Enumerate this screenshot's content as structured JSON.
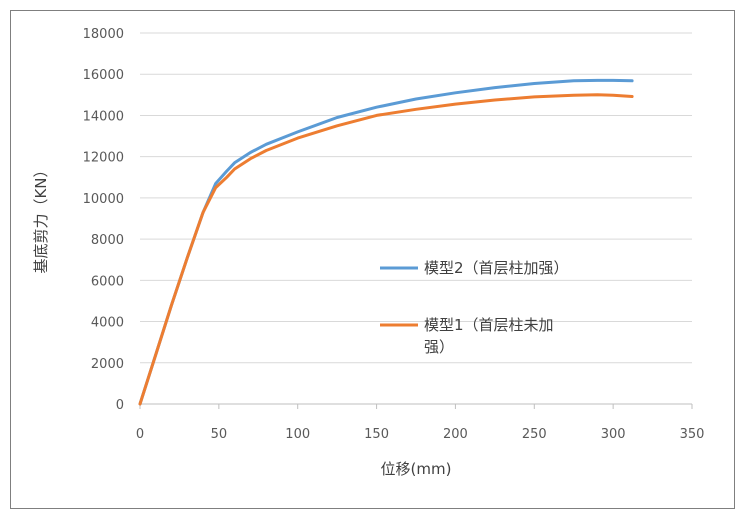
{
  "chart_data": {
    "type": "line",
    "title": "",
    "xlabel": "位移(mm)",
    "ylabel": "基底剪力（KN）",
    "xlim": [
      0,
      350
    ],
    "ylim": [
      0,
      18000
    ],
    "x_ticks": [
      0,
      50,
      100,
      150,
      200,
      250,
      300,
      350
    ],
    "y_ticks": [
      0,
      2000,
      4000,
      6000,
      8000,
      10000,
      12000,
      14000,
      16000,
      18000
    ],
    "grid": "horizontal",
    "legend_position": "center-right",
    "series": [
      {
        "name": "模型2（首层柱加强）",
        "color": "#5b9bd5",
        "x": [
          0,
          10,
          20,
          30,
          40,
          48,
          55,
          60,
          70,
          80,
          100,
          125,
          150,
          175,
          200,
          225,
          250,
          275,
          290,
          300,
          312
        ],
        "y": [
          0,
          2400,
          4800,
          7100,
          9300,
          10700,
          11300,
          11700,
          12200,
          12600,
          13200,
          13900,
          14400,
          14800,
          15100,
          15350,
          15550,
          15680,
          15700,
          15700,
          15680
        ]
      },
      {
        "name": "模型1（首层柱未加\n强）",
        "color": "#ed7d31",
        "x": [
          0,
          10,
          20,
          30,
          40,
          48,
          55,
          60,
          70,
          80,
          100,
          125,
          150,
          175,
          200,
          225,
          250,
          275,
          290,
          300,
          312
        ],
        "y": [
          0,
          2400,
          4800,
          7100,
          9300,
          10500,
          11000,
          11400,
          11900,
          12300,
          12900,
          13500,
          14000,
          14300,
          14550,
          14750,
          14900,
          14980,
          15000,
          14980,
          14920
        ]
      }
    ]
  }
}
